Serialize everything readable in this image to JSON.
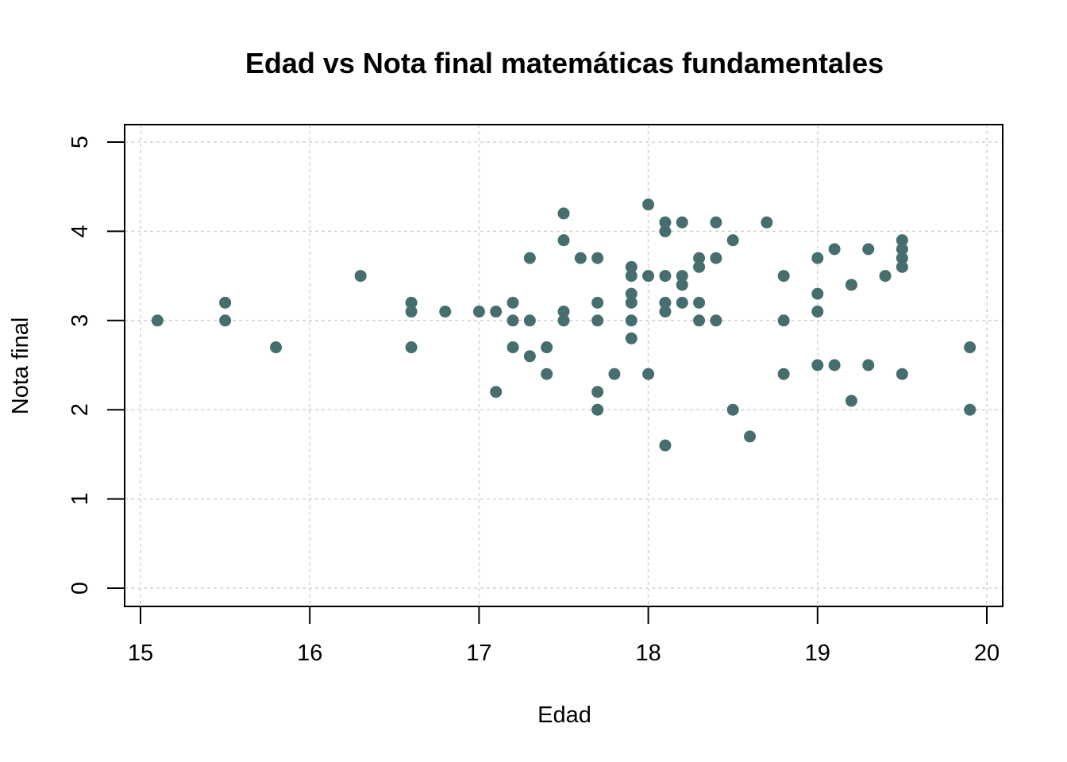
{
  "chart_data": {
    "type": "scatter",
    "title": "Edad vs Nota final matemáticas fundamentales",
    "xlabel": "Edad",
    "ylabel": "Nota final",
    "xlim": [
      15,
      20
    ],
    "ylim": [
      0,
      5
    ],
    "x_ticks": [
      15,
      16,
      17,
      18,
      19,
      20
    ],
    "y_ticks": [
      0,
      1,
      2,
      3,
      4,
      5
    ],
    "grid": true,
    "point_color": "#466E6E",
    "points": [
      [
        15.1,
        3.0
      ],
      [
        15.5,
        3.2
      ],
      [
        15.5,
        3.0
      ],
      [
        15.8,
        2.7
      ],
      [
        16.3,
        3.5
      ],
      [
        16.6,
        3.2
      ],
      [
        16.6,
        3.1
      ],
      [
        16.6,
        2.7
      ],
      [
        16.8,
        3.1
      ],
      [
        17.0,
        3.1
      ],
      [
        17.1,
        3.1
      ],
      [
        17.1,
        2.2
      ],
      [
        17.2,
        3.2
      ],
      [
        17.2,
        3.0
      ],
      [
        17.2,
        2.7
      ],
      [
        17.3,
        3.7
      ],
      [
        17.3,
        3.0
      ],
      [
        17.3,
        2.6
      ],
      [
        17.4,
        2.7
      ],
      [
        17.4,
        2.4
      ],
      [
        17.5,
        4.2
      ],
      [
        17.5,
        3.9
      ],
      [
        17.5,
        3.1
      ],
      [
        17.5,
        3.0
      ],
      [
        17.6,
        3.7
      ],
      [
        17.7,
        3.7
      ],
      [
        17.7,
        3.2
      ],
      [
        17.7,
        3.0
      ],
      [
        17.7,
        2.2
      ],
      [
        17.7,
        2.0
      ],
      [
        17.8,
        2.4
      ],
      [
        17.9,
        3.6
      ],
      [
        17.9,
        3.5
      ],
      [
        17.9,
        3.3
      ],
      [
        17.9,
        3.2
      ],
      [
        17.9,
        3.0
      ],
      [
        17.9,
        2.8
      ],
      [
        18.0,
        4.3
      ],
      [
        18.0,
        3.5
      ],
      [
        18.0,
        2.4
      ],
      [
        18.1,
        4.1
      ],
      [
        18.1,
        4.0
      ],
      [
        18.1,
        3.5
      ],
      [
        18.1,
        3.2
      ],
      [
        18.1,
        3.1
      ],
      [
        18.1,
        1.6
      ],
      [
        18.2,
        4.1
      ],
      [
        18.2,
        3.5
      ],
      [
        18.2,
        3.4
      ],
      [
        18.2,
        3.2
      ],
      [
        18.3,
        3.7
      ],
      [
        18.3,
        3.6
      ],
      [
        18.3,
        3.2
      ],
      [
        18.3,
        3.0
      ],
      [
        18.4,
        4.1
      ],
      [
        18.4,
        3.7
      ],
      [
        18.4,
        3.0
      ],
      [
        18.5,
        3.9
      ],
      [
        18.5,
        2.0
      ],
      [
        18.6,
        1.7
      ],
      [
        18.7,
        4.1
      ],
      [
        18.8,
        3.5
      ],
      [
        18.8,
        3.0
      ],
      [
        18.8,
        2.4
      ],
      [
        19.0,
        3.7
      ],
      [
        19.0,
        3.3
      ],
      [
        19.0,
        3.1
      ],
      [
        19.0,
        2.5
      ],
      [
        19.1,
        3.8
      ],
      [
        19.1,
        2.5
      ],
      [
        19.2,
        3.4
      ],
      [
        19.2,
        2.1
      ],
      [
        19.3,
        3.8
      ],
      [
        19.3,
        2.5
      ],
      [
        19.4,
        3.5
      ],
      [
        19.5,
        3.9
      ],
      [
        19.5,
        3.8
      ],
      [
        19.5,
        3.7
      ],
      [
        19.5,
        3.6
      ],
      [
        19.5,
        2.4
      ],
      [
        19.9,
        2.7
      ],
      [
        19.9,
        2.0
      ]
    ]
  }
}
